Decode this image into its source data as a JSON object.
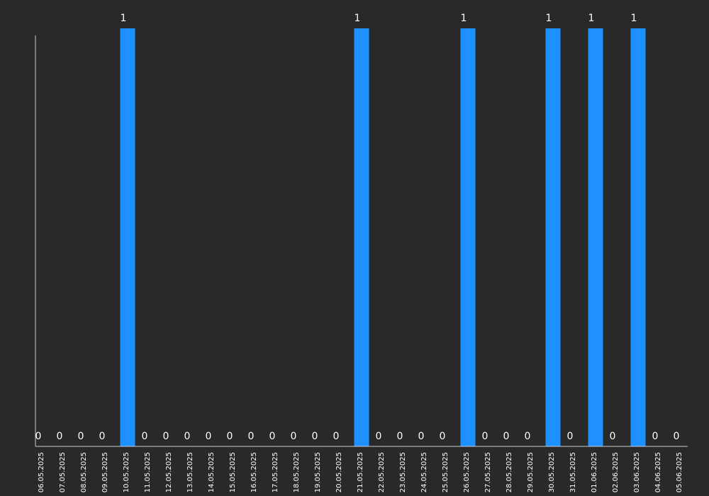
{
  "chart_data": {
    "type": "bar",
    "title": "",
    "xlabel": "",
    "ylabel": "",
    "ylim": [
      0,
      1
    ],
    "grid": false,
    "legend": "none",
    "bar_color": "#1e90ff",
    "background": "#292929",
    "categories": [
      "06.05.2025",
      "07.05.2025",
      "08.05.2025",
      "09.05.2025",
      "10.05.2025",
      "11.05.2025",
      "12.05.2025",
      "13.05.2025",
      "14.05.2025",
      "15.05.2025",
      "16.05.2025",
      "17.05.2025",
      "18.05.2025",
      "19.05.2025",
      "20.05.2025",
      "21.05.2025",
      "22.05.2025",
      "23.05.2025",
      "24.05.2025",
      "25.05.2025",
      "26.05.2025",
      "27.05.2025",
      "28.05.2025",
      "29.05.2025",
      "30.05.2025",
      "31.05.2025",
      "01.06.2025",
      "02.06.2025",
      "03.06.2025",
      "04.06.2025",
      "05.06.2025"
    ],
    "values": [
      0,
      0,
      0,
      0,
      1,
      0,
      0,
      0,
      0,
      0,
      0,
      0,
      0,
      0,
      0,
      1,
      0,
      0,
      0,
      0,
      1,
      0,
      0,
      0,
      1,
      0,
      1,
      0,
      1,
      0,
      0
    ]
  }
}
